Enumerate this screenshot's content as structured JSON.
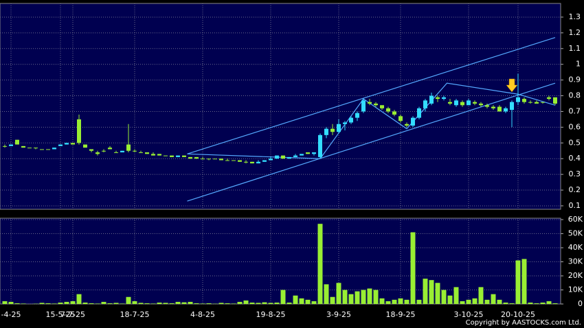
{
  "chart_data": {
    "type": "candlestick",
    "up_color": "#33ddff",
    "down_color": "#99ee33",
    "volume_color": "#99ee33",
    "line_color": "#55aaff",
    "grid": true,
    "categories": [
      null,
      "-4-25",
      null,
      null,
      null,
      null,
      null,
      null,
      null,
      "15-5-25",
      null,
      "7-7-25",
      null,
      null,
      null,
      null,
      null,
      null,
      null,
      null,
      null,
      "18-7-25",
      null,
      null,
      null,
      null,
      null,
      null,
      null,
      null,
      null,
      null,
      "4-8-25",
      null,
      null,
      null,
      null,
      null,
      null,
      null,
      null,
      null,
      null,
      "19-8-25",
      null,
      null,
      null,
      null,
      null,
      null,
      null,
      null,
      null,
      null,
      "3-9-25",
      null,
      null,
      null,
      null,
      null,
      null,
      null,
      null,
      null,
      "18-9-25",
      null,
      null,
      null,
      null,
      null,
      null,
      null,
      null,
      null,
      null,
      "3-10-25",
      null,
      null,
      null,
      null,
      null,
      null,
      null,
      "20-10-25",
      null,
      null,
      null,
      null,
      null,
      null
    ],
    "candles": [
      [
        0.48,
        0.49,
        0.47,
        0.48
      ],
      [
        0.48,
        0.49,
        0.48,
        0.49
      ],
      [
        0.52,
        0.52,
        0.49,
        0.49
      ],
      [
        0.48,
        0.48,
        0.47,
        0.47
      ],
      [
        0.47,
        0.47,
        0.47,
        0.47
      ],
      [
        0.47,
        0.47,
        0.46,
        0.47
      ],
      [
        0.46,
        0.46,
        0.46,
        0.46
      ],
      [
        0.46,
        0.46,
        0.46,
        0.46
      ],
      [
        0.46,
        0.47,
        0.46,
        0.47
      ],
      [
        0.48,
        0.49,
        0.48,
        0.49
      ],
      [
        0.49,
        0.5,
        0.49,
        0.5
      ],
      [
        0.5,
        0.5,
        0.49,
        0.49
      ],
      [
        0.65,
        0.68,
        0.49,
        0.5
      ],
      [
        0.49,
        0.49,
        0.47,
        0.47
      ],
      [
        0.46,
        0.46,
        0.44,
        0.45
      ],
      [
        0.44,
        0.45,
        0.42,
        0.43
      ],
      [
        0.45,
        0.46,
        0.44,
        0.45
      ],
      [
        0.47,
        0.48,
        0.46,
        0.46
      ],
      [
        0.44,
        0.45,
        0.44,
        0.44
      ],
      [
        0.44,
        0.45,
        0.44,
        0.45
      ],
      [
        0.49,
        0.62,
        0.44,
        0.45
      ],
      [
        0.45,
        0.46,
        0.44,
        0.45
      ],
      [
        0.44,
        0.45,
        0.44,
        0.44
      ],
      [
        0.44,
        0.44,
        0.43,
        0.43
      ],
      [
        0.43,
        0.44,
        0.42,
        0.42
      ],
      [
        0.43,
        0.43,
        0.42,
        0.42
      ],
      [
        0.42,
        0.42,
        0.42,
        0.42
      ],
      [
        0.42,
        0.42,
        0.41,
        0.41
      ],
      [
        0.41,
        0.42,
        0.41,
        0.42
      ],
      [
        0.42,
        0.42,
        0.41,
        0.41
      ],
      [
        0.41,
        0.41,
        0.4,
        0.4
      ],
      [
        0.41,
        0.41,
        0.4,
        0.4
      ],
      [
        0.4,
        0.41,
        0.4,
        0.4
      ],
      [
        0.4,
        0.4,
        0.39,
        0.4
      ],
      [
        0.4,
        0.4,
        0.4,
        0.4
      ],
      [
        0.4,
        0.4,
        0.39,
        0.39
      ],
      [
        0.39,
        0.4,
        0.39,
        0.39
      ],
      [
        0.39,
        0.39,
        0.39,
        0.39
      ],
      [
        0.39,
        0.39,
        0.38,
        0.38
      ],
      [
        0.38,
        0.39,
        0.37,
        0.38
      ],
      [
        0.38,
        0.38,
        0.37,
        0.37
      ],
      [
        0.37,
        0.39,
        0.37,
        0.38
      ],
      [
        0.38,
        0.39,
        0.38,
        0.39
      ],
      [
        0.39,
        0.41,
        0.39,
        0.4
      ],
      [
        0.4,
        0.42,
        0.4,
        0.42
      ],
      [
        0.42,
        0.42,
        0.4,
        0.4
      ],
      [
        0.4,
        0.41,
        0.4,
        0.41
      ],
      [
        0.41,
        0.43,
        0.41,
        0.42
      ],
      [
        0.42,
        0.43,
        0.42,
        0.43
      ],
      [
        0.44,
        0.44,
        0.43,
        0.43
      ],
      [
        0.43,
        0.44,
        0.42,
        0.44
      ],
      [
        0.41,
        0.56,
        0.4,
        0.55
      ],
      [
        0.55,
        0.6,
        0.53,
        0.59
      ],
      [
        0.59,
        0.62,
        0.55,
        0.57
      ],
      [
        0.57,
        0.65,
        0.56,
        0.62
      ],
      [
        0.62,
        0.64,
        0.58,
        0.63
      ],
      [
        0.63,
        0.67,
        0.62,
        0.66
      ],
      [
        0.66,
        0.7,
        0.64,
        0.69
      ],
      [
        0.7,
        0.78,
        0.69,
        0.77
      ],
      [
        0.76,
        0.78,
        0.74,
        0.75
      ],
      [
        0.75,
        0.76,
        0.73,
        0.74
      ],
      [
        0.74,
        0.74,
        0.71,
        0.72
      ],
      [
        0.72,
        0.73,
        0.69,
        0.7
      ],
      [
        0.7,
        0.71,
        0.67,
        0.68
      ],
      [
        0.67,
        0.68,
        0.63,
        0.64
      ],
      [
        0.62,
        0.63,
        0.6,
        0.61
      ],
      [
        0.61,
        0.67,
        0.6,
        0.66
      ],
      [
        0.66,
        0.73,
        0.65,
        0.72
      ],
      [
        0.72,
        0.78,
        0.7,
        0.77
      ],
      [
        0.75,
        0.82,
        0.74,
        0.8
      ],
      [
        0.79,
        0.8,
        0.76,
        0.78
      ],
      [
        0.78,
        0.8,
        0.77,
        0.79
      ],
      [
        0.76,
        0.78,
        0.74,
        0.75
      ],
      [
        0.74,
        0.78,
        0.73,
        0.77
      ],
      [
        0.76,
        0.77,
        0.73,
        0.74
      ],
      [
        0.74,
        0.78,
        0.74,
        0.77
      ],
      [
        0.76,
        0.77,
        0.74,
        0.75
      ],
      [
        0.75,
        0.76,
        0.73,
        0.74
      ],
      [
        0.74,
        0.75,
        0.72,
        0.73
      ],
      [
        0.73,
        0.74,
        0.71,
        0.72
      ],
      [
        0.73,
        0.74,
        0.7,
        0.7
      ],
      [
        0.7,
        0.73,
        0.69,
        0.72
      ],
      [
        0.71,
        0.77,
        0.6,
        0.76
      ],
      [
        0.76,
        0.94,
        0.74,
        0.79
      ],
      [
        0.78,
        0.79,
        0.75,
        0.76
      ],
      [
        0.76,
        0.77,
        0.75,
        0.76
      ],
      [
        0.76,
        0.77,
        0.75,
        0.75
      ],
      [
        0.76,
        0.76,
        0.75,
        0.76
      ],
      [
        0.79,
        0.8,
        0.77,
        0.78
      ],
      [
        0.79,
        0.79,
        0.74,
        0.75
      ]
    ],
    "volume": [
      2000,
      1500,
      500,
      300,
      0,
      200,
      800,
      500,
      300,
      1000,
      1500,
      2000,
      7000,
      1000,
      500,
      300,
      1500,
      500,
      800,
      300,
      5000,
      2000,
      800,
      500,
      300,
      1000,
      800,
      500,
      1500,
      1200,
      1500,
      500,
      300,
      500,
      200,
      800,
      500,
      300,
      1500,
      2500,
      1000,
      800,
      1200,
      800,
      1000,
      10000,
      1000,
      6000,
      4000,
      3000,
      2000,
      57000,
      14000,
      5000,
      15000,
      10000,
      7000,
      9000,
      10000,
      11000,
      10000,
      4000,
      2000,
      3000,
      4000,
      3000,
      51000,
      3000,
      18000,
      17000,
      15000,
      10000,
      6000,
      12000,
      2000,
      3000,
      4000,
      12000,
      3000,
      7000,
      3000,
      1000,
      500,
      31000,
      32000,
      1000,
      500,
      1000,
      2000,
      500
    ],
    "trendlines": [
      {
        "x": [
          29.5,
          89
        ],
        "y": [
          0.43,
          1.17
        ]
      },
      {
        "x": [
          29.5,
          89
        ],
        "y": [
          0.13,
          0.88
        ]
      },
      {
        "x": [
          29.5,
          51,
          58,
          65,
          71.5,
          83,
          89
        ],
        "y": [
          0.43,
          0.4,
          0.78,
          0.59,
          0.88,
          0.81,
          0.74
        ]
      }
    ],
    "ylim": [
      0.078,
      1.387
    ],
    "yticks": [
      0.1,
      0.2,
      0.3,
      0.4,
      0.5,
      0.6,
      0.7,
      0.8,
      0.9,
      1,
      1.1,
      1.2,
      1.3
    ],
    "volume_ylim": [
      0,
      61000
    ],
    "volume_yticks": [
      {
        "value": 0,
        "label": "0"
      },
      {
        "value": 10000,
        "label": "10K"
      },
      {
        "value": 20000,
        "label": "20K"
      },
      {
        "value": 30000,
        "label": "30K"
      },
      {
        "value": 40000,
        "label": "40K"
      },
      {
        "value": 50000,
        "label": "50K"
      },
      {
        "value": 60000,
        "label": "60K"
      }
    ],
    "copyright": "Copyright by AASTOCKS.com Ltd."
  }
}
